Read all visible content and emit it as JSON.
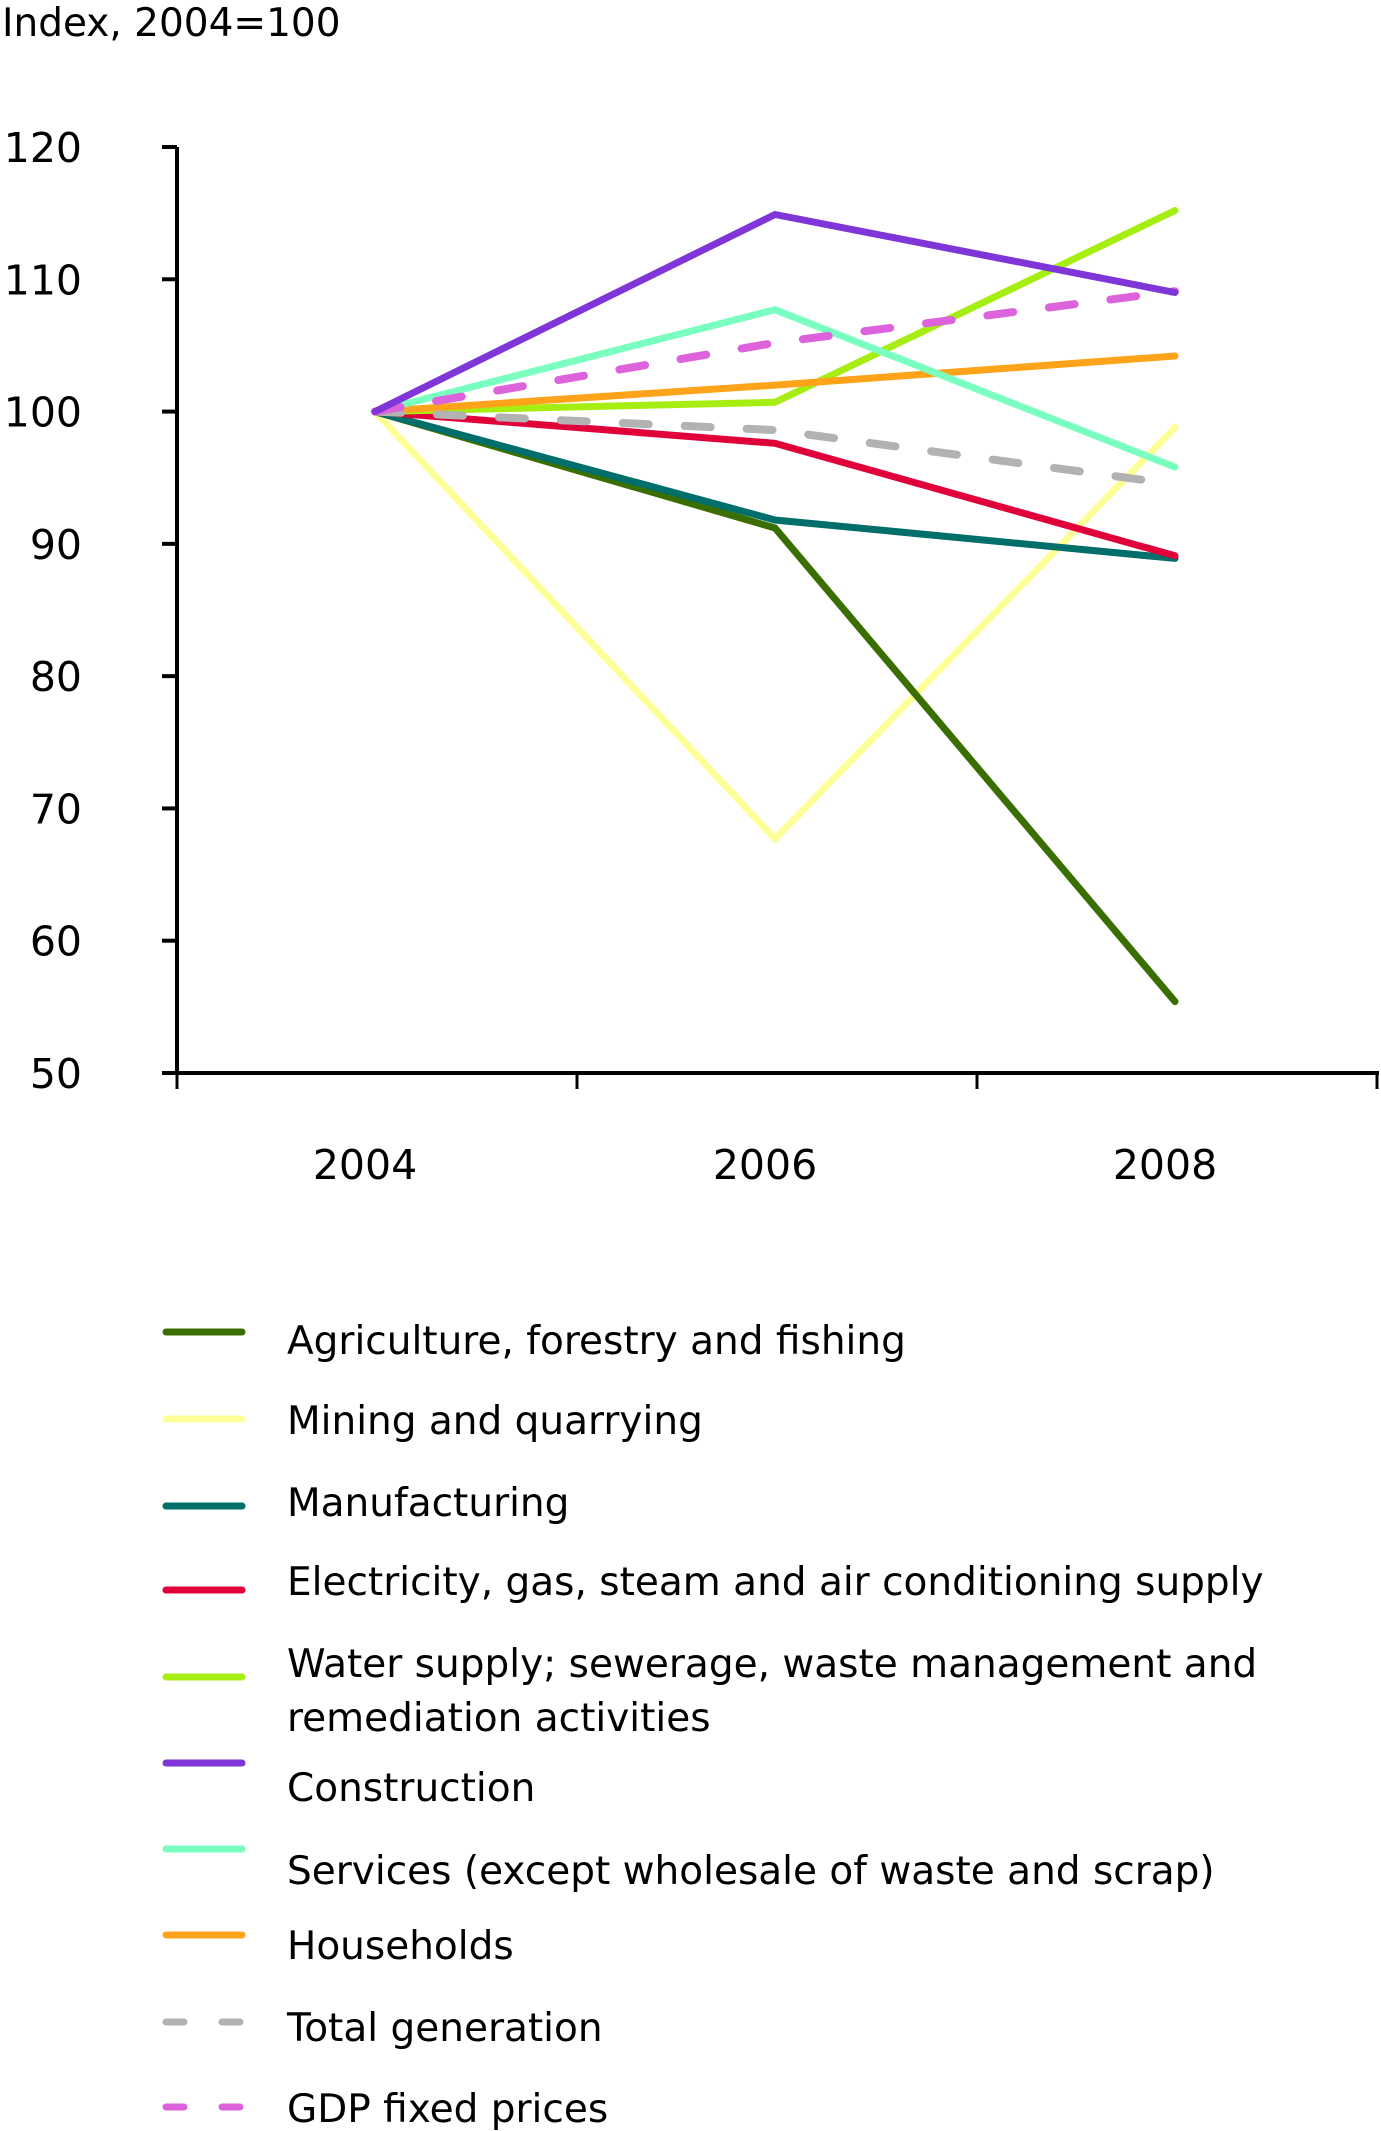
{
  "chart_data": {
    "type": "line",
    "title": "",
    "ylabel": "Index, 2004=100",
    "xlabel": "",
    "categories": [
      "2004",
      "2006",
      "2008"
    ],
    "ylim": [
      50,
      120
    ],
    "yticks": [
      "50",
      "60",
      "70",
      "80",
      "90",
      "100",
      "110",
      "120"
    ],
    "grid": false,
    "legend_position": "bottom",
    "series": [
      {
        "name": "Agriculture, forestry and fishing",
        "color": "#3a6e00",
        "dashed": false,
        "values": [
          100,
          91.2,
          55.4
        ]
      },
      {
        "name": "Mining and quarrying",
        "color": "#ffff99",
        "dashed": false,
        "values": [
          100,
          67.7,
          98.8
        ]
      },
      {
        "name": "Manufacturing",
        "color": "#006e6a",
        "dashed": false,
        "values": [
          100,
          91.8,
          88.9
        ]
      },
      {
        "name": "Electricity, gas, steam and air conditioning supply",
        "color": "#e0003a",
        "dashed": false,
        "values": [
          100,
          97.6,
          89.1
        ]
      },
      {
        "name": "Water supply; sewerage, waste management and remediation activities",
        "label_lines": [
          "Water supply; sewerage, waste management and",
          "remediation activities"
        ],
        "color": "#a6ee12",
        "dashed": false,
        "values": [
          100,
          100.7,
          115.2
        ]
      },
      {
        "name": "Construction",
        "color": "#7f35d8",
        "dashed": false,
        "values": [
          100,
          114.9,
          109.0
        ]
      },
      {
        "name": "Services (except wholesale of waste and scrap)",
        "color": "#7affc0",
        "dashed": false,
        "values": [
          100,
          107.7,
          95.8
        ]
      },
      {
        "name": "Households",
        "color": "#ffa31a",
        "dashed": false,
        "values": [
          100,
          102.0,
          104.2
        ]
      },
      {
        "name": "Total generation",
        "color": "#b2b2b2",
        "dashed": true,
        "values": [
          100,
          98.6,
          94.5
        ]
      },
      {
        "name": "GDP fixed prices",
        "color": "#dc63dc",
        "dashed": true,
        "values": [
          100,
          105.2,
          109.1
        ]
      }
    ]
  }
}
